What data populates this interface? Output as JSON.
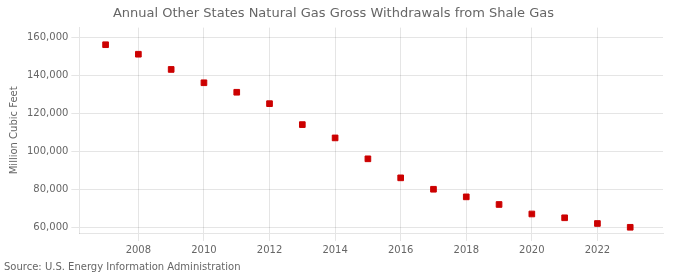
{
  "chart_data": {
    "type": "scatter",
    "title": "Annual Other States Natural Gas Gross Withdrawals from Shale Gas",
    "ylabel": "Million Cubic Feet",
    "annotations": [
      "Source: U.S. Energy Information Administration"
    ],
    "x": [
      2007,
      2008,
      2009,
      2010,
      2011,
      2012,
      2013,
      2014,
      2015,
      2016,
      2017,
      2018,
      2019,
      2020,
      2021,
      2022,
      2023
    ],
    "values": [
      156000,
      151000,
      143000,
      136000,
      131000,
      125000,
      114000,
      107000,
      96000,
      86000,
      80000,
      76000,
      72000,
      67000,
      65000,
      62000,
      60000
    ],
    "color": "#cc0000",
    "marker": "square",
    "xlim": [
      2006.2,
      2024.0
    ],
    "xticks": [
      2008,
      2010,
      2012,
      2014,
      2016,
      2018,
      2020,
      2022
    ],
    "ylim": [
      57000,
      165000
    ],
    "yticks": [
      {
        "value": 60000,
        "label": "60,000"
      },
      {
        "value": 80000,
        "label": "80,000"
      },
      {
        "value": 100000,
        "label": "100,000"
      },
      {
        "value": 120000,
        "label": "120,000"
      },
      {
        "value": 140000,
        "label": "140,000"
      },
      {
        "value": 160000,
        "label": "160,000"
      }
    ],
    "grid": true
  }
}
